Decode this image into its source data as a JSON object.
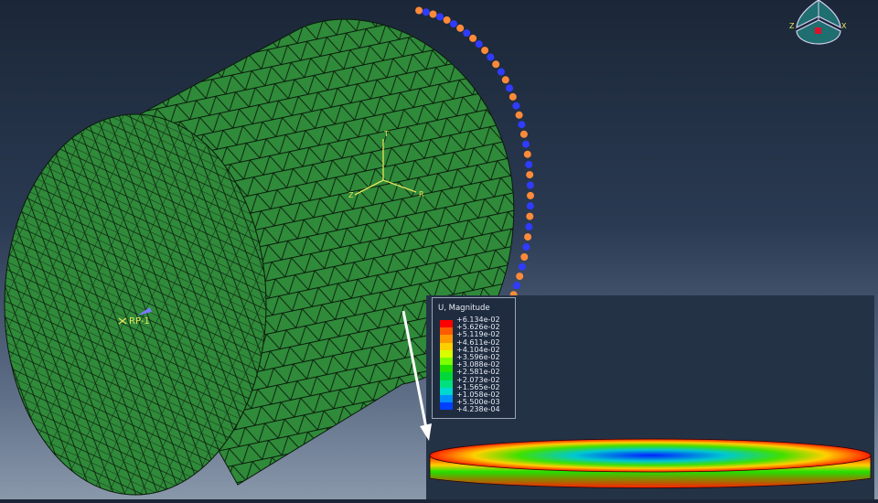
{
  "viewport": {
    "reference_point_label": "RP-1",
    "triad_labels": {
      "r": "R",
      "t": "T",
      "z": "Z"
    },
    "view_cube_labels": {
      "left": "Z",
      "right": "X"
    },
    "colors": {
      "mesh_fill": "#2f8a3a",
      "mesh_lines": "#0a1a0a",
      "bc_markers": "#2f3cff",
      "load_markers": "#ff8a3a",
      "triad": "#e6e65a"
    }
  },
  "legend": {
    "title": "U, Magnitude",
    "values": [
      "+6.134e-02",
      "+5.626e-02",
      "+5.119e-02",
      "+4.611e-02",
      "+4.104e-02",
      "+3.596e-02",
      "+3.088e-02",
      "+2.581e-02",
      "+2.073e-02",
      "+1.565e-02",
      "+1.058e-02",
      "+5.500e-03",
      "+4.238e-04"
    ],
    "colors": [
      "#ff0000",
      "#ff5a00",
      "#ff9900",
      "#ffd000",
      "#d8ff00",
      "#7cff00",
      "#22e000",
      "#00d83a",
      "#00e080",
      "#00d8d0",
      "#0090ff",
      "#0040ff",
      "#0000ff"
    ]
  }
}
